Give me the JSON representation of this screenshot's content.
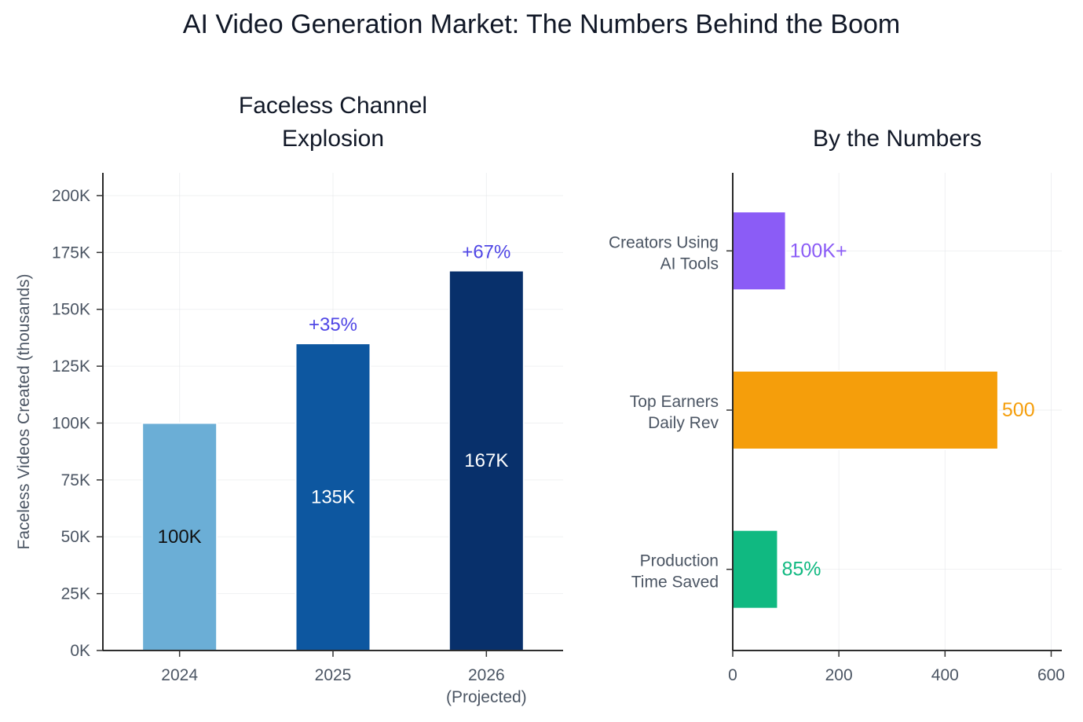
{
  "title": "AI Video Generation Market: The Numbers Behind the Boom",
  "chart_data": [
    {
      "type": "bar",
      "title_lines": [
        "Faceless Channel",
        "Explosion"
      ],
      "ylabel": "Faceless Videos Created (thousands)",
      "categories": [
        [
          "2024"
        ],
        [
          "2025"
        ],
        [
          "2026",
          "(Projected)"
        ]
      ],
      "values": [
        100,
        135,
        167
      ],
      "value_labels": [
        "100K",
        "135K",
        "167K"
      ],
      "growth_labels": [
        "",
        "+35%",
        "+67%"
      ],
      "colors": [
        "#6baed6",
        "#0d57a0",
        "#08306b"
      ],
      "inbar_text_colors": [
        "#111111",
        "#ffffff",
        "#ffffff"
      ],
      "ylim": [
        0,
        210
      ],
      "yticks": [
        0,
        25,
        50,
        75,
        100,
        125,
        150,
        175,
        200
      ],
      "ytick_labels": [
        "0K",
        "25K",
        "50K",
        "75K",
        "100K",
        "125K",
        "150K",
        "175K",
        "200K"
      ],
      "grid": true
    },
    {
      "type": "bar",
      "orientation": "horizontal",
      "title": "By the Numbers",
      "categories": [
        [
          "Creators Using",
          "AI Tools"
        ],
        [
          "Top Earners",
          "Daily Rev"
        ],
        [
          "Production",
          "Time Saved"
        ]
      ],
      "values": [
        100,
        500,
        85
      ],
      "value_labels": [
        "100K+",
        "500",
        "85%"
      ],
      "colors": [
        "#8b5cf6",
        "#f59e0b",
        "#10b981"
      ],
      "xlim": [
        0,
        620
      ],
      "xticks": [
        0,
        200,
        400,
        600
      ],
      "xtick_labels": [
        "0",
        "200",
        "400",
        "600"
      ],
      "grid": true
    }
  ]
}
